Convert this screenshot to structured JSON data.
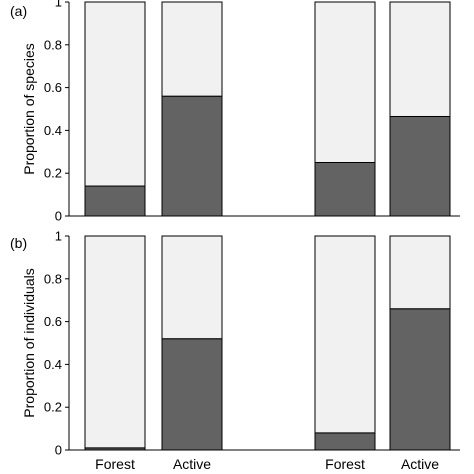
{
  "chart_data": [
    {
      "type": "bar",
      "stacked": true,
      "panel_label": "(a)",
      "ylabel": "Proportion of species",
      "ylim": [
        0,
        1
      ],
      "yticks": [
        "0",
        "0.2",
        "0.4",
        "0.6",
        "0.8",
        "1"
      ],
      "categories": [
        "Forest",
        "Active",
        "Forest",
        "Active"
      ],
      "show_category_labels": false,
      "series": [
        {
          "color": "#636363",
          "values": [
            0.14,
            0.56,
            0.25,
            0.465
          ]
        },
        {
          "color": "#f1f1f1",
          "values": [
            0.86,
            0.44,
            0.75,
            0.535
          ]
        }
      ]
    },
    {
      "type": "bar",
      "stacked": true,
      "panel_label": "(b)",
      "ylabel": "Proportion of individuals",
      "ylim": [
        0,
        1
      ],
      "yticks": [
        "0",
        "0.2",
        "0.4",
        "0.6",
        "0.8",
        "1"
      ],
      "categories": [
        "Forest",
        "Active",
        "Forest",
        "Active"
      ],
      "show_category_labels": true,
      "series": [
        {
          "color": "#636363",
          "values": [
            0.01,
            0.52,
            0.08,
            0.66
          ]
        },
        {
          "color": "#f1f1f1",
          "values": [
            0.99,
            0.48,
            0.92,
            0.34
          ]
        }
      ]
    }
  ]
}
